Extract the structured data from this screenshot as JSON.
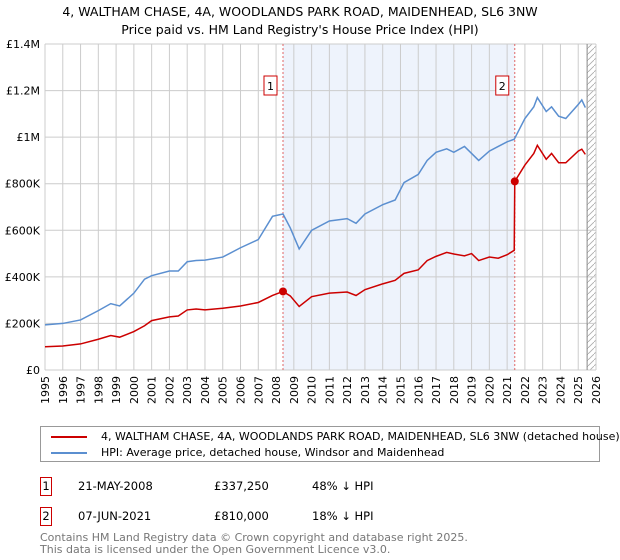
{
  "chart_data": {
    "type": "line",
    "title": "4, WALTHAM CHASE, 4A, WOODLANDS PARK ROAD, MAIDENHEAD, SL6 3NW",
    "subtitle": "Price paid vs. HM Land Registry's House Price Index (HPI)",
    "xlim": [
      1995,
      2026
    ],
    "ylim": [
      0,
      1400000
    ],
    "grid": true,
    "y_ticks": [
      {
        "v": 0,
        "label": "£0"
      },
      {
        "v": 200000,
        "label": "£200K"
      },
      {
        "v": 400000,
        "label": "£400K"
      },
      {
        "v": 600000,
        "label": "£600K"
      },
      {
        "v": 800000,
        "label": "£800K"
      },
      {
        "v": 1000000,
        "label": "£1M"
      },
      {
        "v": 1200000,
        "label": "£1.2M"
      },
      {
        "v": 1400000,
        "label": "£1.4M"
      }
    ],
    "x_ticks": [
      "1995",
      "1996",
      "1997",
      "1998",
      "1999",
      "2000",
      "2001",
      "2002",
      "2003",
      "2004",
      "2005",
      "2006",
      "2007",
      "2008",
      "2009",
      "2010",
      "2011",
      "2012",
      "2013",
      "2014",
      "2015",
      "2016",
      "2017",
      "2018",
      "2019",
      "2020",
      "2021",
      "2022",
      "2023",
      "2024",
      "2025",
      "2026"
    ],
    "shaded_range": [
      2008.39,
      2021.43
    ],
    "hatched_from": 2025.5,
    "series": [
      {
        "name": "4, WALTHAM CHASE, 4A, WOODLANDS PARK ROAD, MAIDENHEAD, SL6 3NW (detached house)",
        "color": "#cc0000",
        "x": [
          1995,
          1996,
          1997,
          1998,
          1998.7,
          1999.2,
          2000,
          2000.6,
          2001,
          2002,
          2002.5,
          2003,
          2003.5,
          2004,
          2005,
          2006,
          2007,
          2007.8,
          2008.39,
          2008.8,
          2009.3,
          2010,
          2011,
          2012,
          2012.5,
          2013,
          2014,
          2014.7,
          2015.2,
          2016,
          2016.5,
          2017,
          2017.6,
          2018,
          2018.6,
          2019,
          2019.4,
          2020,
          2020.5,
          2021,
          2021.4,
          2021.43,
          2022,
          2022.5,
          2022.7,
          2023.2,
          2023.5,
          2023.9,
          2024.3,
          2025,
          2025.2,
          2025.4
        ],
        "y": [
          100000,
          103000,
          112000,
          132000,
          148000,
          141000,
          165000,
          190000,
          212000,
          228000,
          232000,
          258000,
          262000,
          258000,
          265000,
          275000,
          290000,
          320000,
          337250,
          318000,
          273000,
          315000,
          330000,
          335000,
          320000,
          345000,
          370000,
          385000,
          415000,
          430000,
          470000,
          488000,
          505000,
          498000,
          490000,
          500000,
          470000,
          485000,
          480000,
          495000,
          514000,
          810000,
          880000,
          930000,
          965000,
          905000,
          930000,
          890000,
          890000,
          940000,
          948000,
          926000
        ]
      },
      {
        "name": "HPI: Average price, detached house, Windsor and Maidenhead",
        "color": "#5b8fd0",
        "x": [
          1995,
          1996,
          1997,
          1998,
          1998.7,
          1999.2,
          2000,
          2000.6,
          2001,
          2002,
          2002.5,
          2003,
          2003.5,
          2004,
          2005,
          2006,
          2007,
          2007.8,
          2008.39,
          2008.8,
          2009.3,
          2010,
          2011,
          2012,
          2012.5,
          2013,
          2014,
          2014.7,
          2015.2,
          2016,
          2016.5,
          2017,
          2017.6,
          2018,
          2018.6,
          2019,
          2019.4,
          2020,
          2020.5,
          2021,
          2021.4,
          2022,
          2022.5,
          2022.7,
          2023.2,
          2023.5,
          2023.9,
          2024.3,
          2025,
          2025.2,
          2025.4
        ],
        "y": [
          194000,
          200000,
          215000,
          255000,
          285000,
          275000,
          330000,
          390000,
          405000,
          425000,
          425000,
          465000,
          470000,
          472000,
          485000,
          525000,
          560000,
          660000,
          670000,
          610000,
          520000,
          600000,
          640000,
          650000,
          630000,
          670000,
          710000,
          730000,
          805000,
          840000,
          900000,
          935000,
          950000,
          935000,
          960000,
          930000,
          900000,
          940000,
          960000,
          980000,
          991000,
          1080000,
          1130000,
          1170000,
          1110000,
          1130000,
          1090000,
          1080000,
          1140000,
          1160000,
          1127000
        ]
      }
    ],
    "annotations": [
      {
        "label": "1",
        "x": 2008.39,
        "y": 337250
      },
      {
        "label": "2",
        "x": 2021.43,
        "y": 810000
      }
    ]
  },
  "legend": {
    "red": "4, WALTHAM CHASE, 4A, WOODLANDS PARK ROAD, MAIDENHEAD, SL6 3NW (detached house)",
    "blue": "HPI: Average price, detached house, Windsor and Maidenhead"
  },
  "transactions": [
    {
      "num": "1",
      "date": "21-MAY-2008",
      "price": "£337,250",
      "hpi": "48% ↓ HPI"
    },
    {
      "num": "2",
      "date": "07-JUN-2021",
      "price": "£810,000",
      "hpi": "18% ↓ HPI"
    }
  ],
  "footer": {
    "line1": "Contains HM Land Registry data © Crown copyright and database right 2025.",
    "line2": "This data is licensed under the Open Government Licence v3.0."
  }
}
